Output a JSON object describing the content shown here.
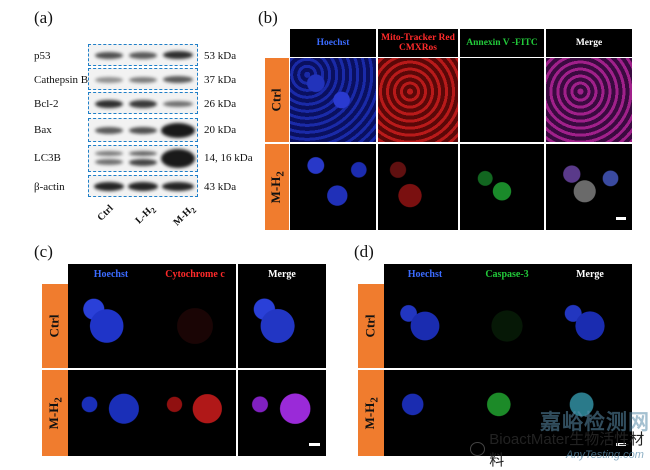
{
  "figure": {
    "panel_a": {
      "letter": "(a)",
      "rows": [
        {
          "label": "p53",
          "kda": "53 kDa"
        },
        {
          "label": "Cathepsin B",
          "kda": "37 kDa"
        },
        {
          "label": "Bcl-2",
          "kda": "26 kDa"
        },
        {
          "label": "Bax",
          "kda": "20 kDa"
        },
        {
          "label": "LC3B",
          "kda": "14, 16 kDa"
        },
        {
          "label": "β-actin",
          "kda": "43 kDa"
        }
      ],
      "lanes": [
        "Ctrl",
        "L-H",
        "M-H"
      ],
      "lane_subscript": "2"
    },
    "panel_b": {
      "letter": "(b)",
      "headers": [
        "Hoechst",
        "Mito-Tracker Red CMXRos",
        "Annexin V -FITC",
        "Merge"
      ],
      "header_colors": [
        "#3b6bff",
        "#ff2a2a",
        "#22c93a",
        "#ffffff"
      ],
      "rows": [
        "Ctrl",
        "M-H"
      ],
      "row_subscript": "2"
    },
    "panel_c": {
      "letter": "(c)",
      "headers": [
        "Hoechst",
        "Cytochrome c",
        "Merge"
      ],
      "header_colors": [
        "#3b6bff",
        "#ff2a2a",
        "#ffffff"
      ],
      "rows": [
        "Ctrl",
        "M-H"
      ],
      "row_subscript": "2"
    },
    "panel_d": {
      "letter": "(d)",
      "headers": [
        "Hoechst",
        "Caspase-3",
        "Merge"
      ],
      "header_colors": [
        "#3b6bff",
        "#22c93a",
        "#ffffff"
      ],
      "rows": [
        "Ctrl",
        "M-H"
      ],
      "row_subscript": "2"
    },
    "watermark": {
      "account": "BioactMater生物活性材料",
      "site_cn": "嘉峪检测网",
      "site_en": "AnyTesting.com"
    }
  }
}
